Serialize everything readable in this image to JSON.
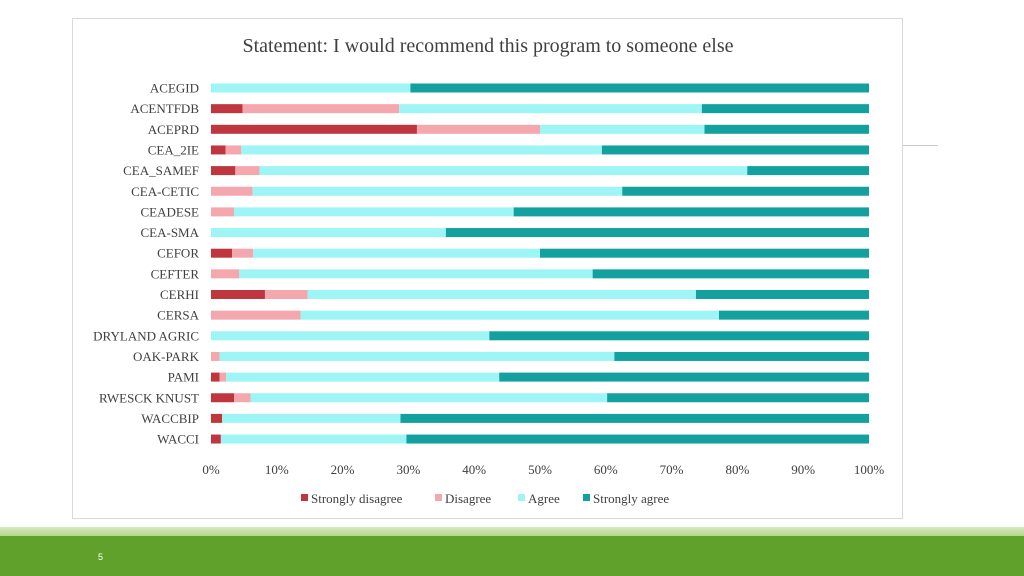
{
  "slide": {
    "page_number": "5"
  },
  "chart_data": {
    "type": "bar",
    "orientation": "horizontal",
    "stacked": "100%",
    "title": "Statement: I would recommend this program to someone else",
    "categories": [
      "ACEGID",
      "ACENTFDB",
      "ACEPRD",
      "CEA_2IE",
      "CEA_SAMEF",
      "CEA-CETIC",
      "CEADESE",
      "CEA-SMA",
      "CEFOR",
      "CEFTER",
      "CERHI",
      "CERSA",
      "DRYLAND AGRIC",
      "OAK-PARK",
      "PAMI",
      "RWESCK KNUST",
      "WACCBIP",
      "WACCI"
    ],
    "series": [
      {
        "name": "Strongly disagree",
        "color": "#c0363f",
        "values": [
          0,
          4.8,
          31.3,
          2.2,
          3.7,
          0,
          0,
          0,
          3.2,
          0,
          8.2,
          0,
          0,
          0,
          1.3,
          3.5,
          1.7,
          1.5
        ]
      },
      {
        "name": "Disagree",
        "color": "#f4a7ad",
        "values": [
          0,
          23.8,
          18.7,
          2.4,
          3.7,
          6.3,
          3.5,
          0,
          3.2,
          4.3,
          6.5,
          13.6,
          0,
          1.3,
          1.0,
          2.5,
          0,
          0
        ]
      },
      {
        "name": "Agree",
        "color": "#9ef5f5",
        "values": [
          30.3,
          46.0,
          25.0,
          54.8,
          74.1,
          56.2,
          42.5,
          35.7,
          43.6,
          53.7,
          59.0,
          63.6,
          42.3,
          60.0,
          41.5,
          54.2,
          27.1,
          28.2
        ]
      },
      {
        "name": "Strongly agree",
        "color": "#13a19f",
        "values": [
          69.7,
          25.4,
          25.0,
          40.6,
          18.5,
          37.5,
          54.0,
          64.3,
          50.0,
          42.0,
          26.3,
          22.8,
          57.7,
          38.7,
          56.2,
          39.8,
          71.2,
          70.3
        ]
      }
    ],
    "xlim": [
      0,
      100
    ],
    "x_ticks": [
      "0%",
      "10%",
      "20%",
      "30%",
      "40%",
      "50%",
      "60%",
      "70%",
      "80%",
      "90%",
      "100%"
    ],
    "grid": false,
    "legend_position": "bottom"
  }
}
